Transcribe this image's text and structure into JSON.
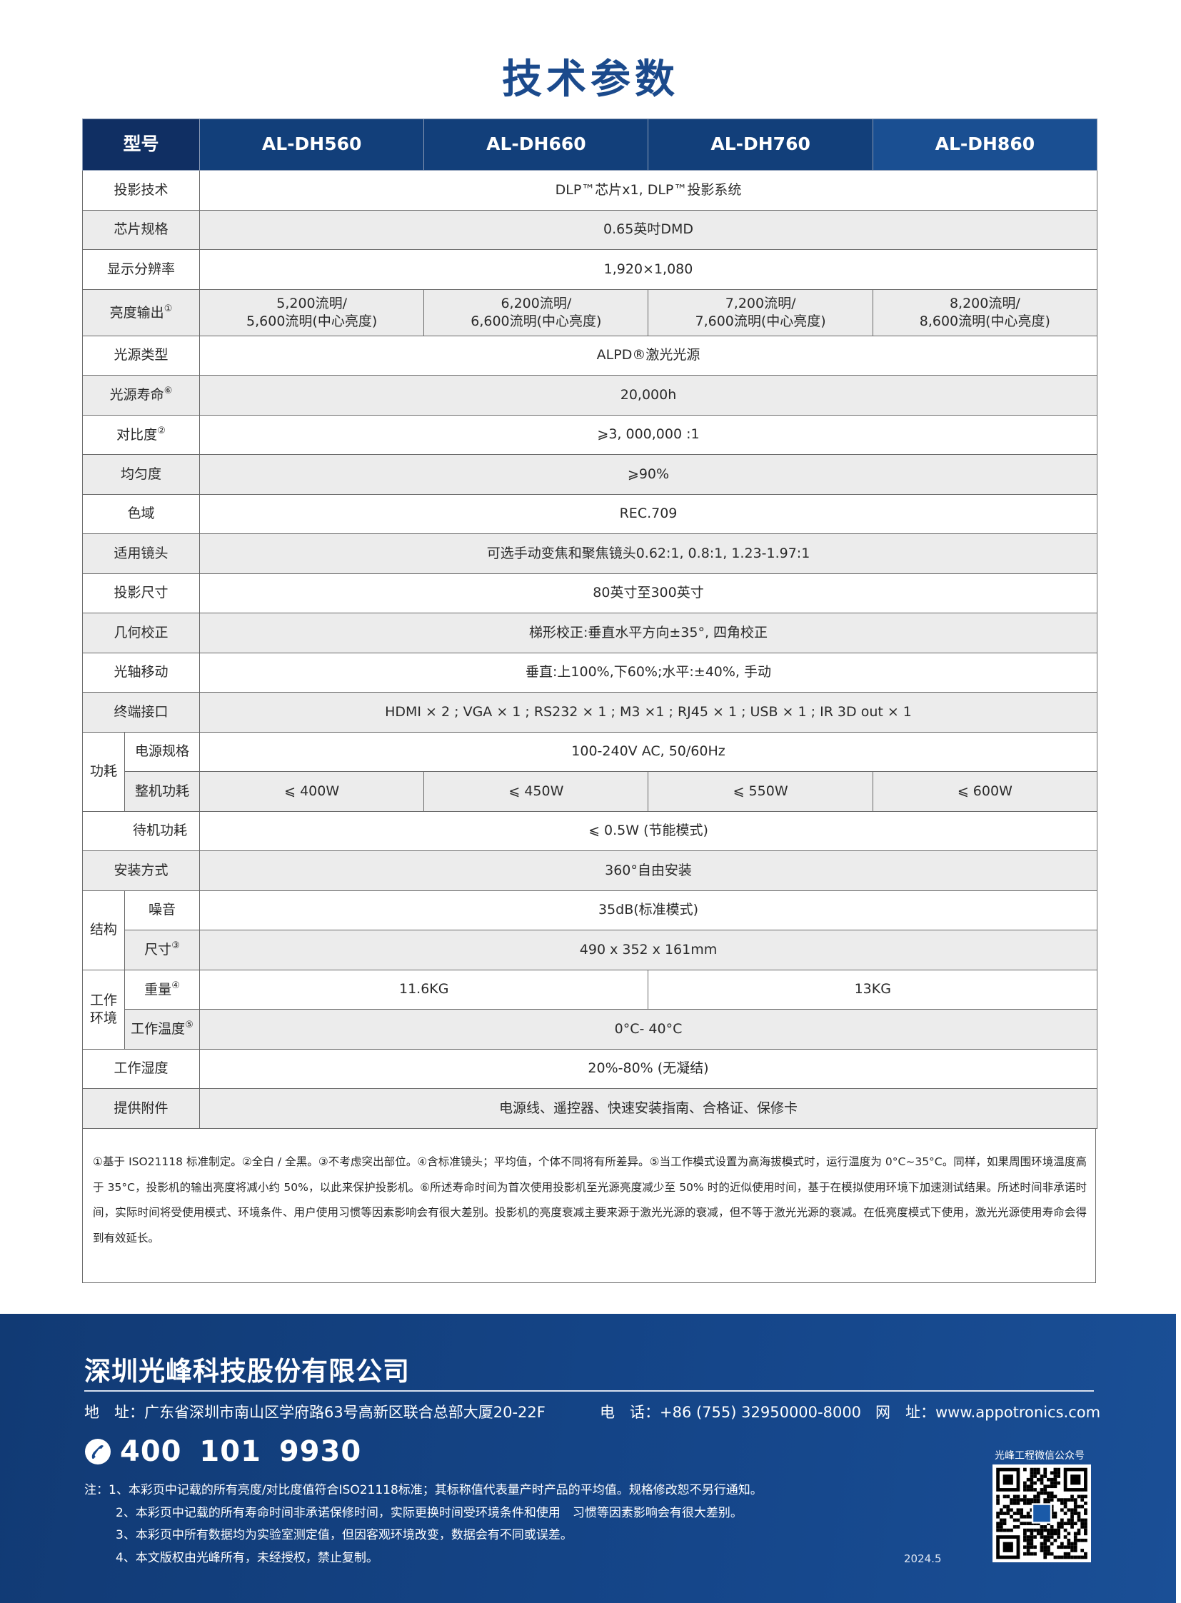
{
  "title": "技术参数",
  "table": {
    "headers": [
      "型号",
      "AL-DH560",
      "AL-DH660",
      "AL-DH760",
      "AL-DH860"
    ],
    "rows": [
      {
        "label": "投影技术",
        "cells": [
          {
            "text": "DLP™芯片x1, DLP™投影系统",
            "span": 4
          }
        ]
      },
      {
        "label": "芯片规格",
        "cells": [
          {
            "text": "0.65英吋DMD",
            "span": 4
          }
        ]
      },
      {
        "label": "显示分辨率",
        "cells": [
          {
            "text": "1,920×1,080",
            "span": 4
          }
        ]
      },
      {
        "label": "亮度输出",
        "sup": "①",
        "tall": true,
        "cells": [
          {
            "text": "5,200流明/\n5,600流明(中心亮度)",
            "span": 1
          },
          {
            "text": "6,200流明/\n6,600流明(中心亮度)",
            "span": 1
          },
          {
            "text": "7,200流明/\n7,600流明(中心亮度)",
            "span": 1
          },
          {
            "text": "8,200流明/\n8,600流明(中心亮度)",
            "span": 1
          }
        ]
      },
      {
        "label": "光源类型",
        "cells": [
          {
            "text": "ALPD®激光光源",
            "span": 4
          }
        ]
      },
      {
        "label": "光源寿命",
        "sup": "⑥",
        "cells": [
          {
            "text": "20,000h",
            "span": 4
          }
        ]
      },
      {
        "label": "对比度",
        "sup": "②",
        "cells": [
          {
            "text": "⩾3, 000,000 :1",
            "span": 4
          }
        ]
      },
      {
        "label": "均匀度",
        "cells": [
          {
            "text": "⩾90%",
            "span": 4
          }
        ]
      },
      {
        "label": "色域",
        "cells": [
          {
            "text": "REC.709",
            "span": 4
          }
        ]
      },
      {
        "label": "适用镜头",
        "cells": [
          {
            "text": "可选手动变焦和聚焦镜头0.62:1, 0.8:1, 1.23-1.97:1",
            "span": 4
          }
        ]
      },
      {
        "label": "投影尺寸",
        "cells": [
          {
            "text": "80英寸至300英寸",
            "span": 4
          }
        ]
      },
      {
        "label": "几何校正",
        "cells": [
          {
            "text": "梯形校正:垂直水平方向±35°, 四角校正",
            "span": 4
          }
        ]
      },
      {
        "label": "光轴移动",
        "cells": [
          {
            "text": "垂直:上100%,下60%;水平:±40%, 手动",
            "span": 4
          }
        ]
      },
      {
        "label": "终端接口",
        "cells": [
          {
            "text": "HDMI × 2 ; VGA × 1 ; RS232 × 1 ; M3 ×1 ; RJ45 × 1 ; USB × 1 ; IR 3D out × 1",
            "span": 4
          }
        ]
      },
      {
        "group": "功耗",
        "group_span": 2,
        "label": "电源规格",
        "cells": [
          {
            "text": "100-240V AC, 50/60Hz",
            "span": 4
          }
        ]
      },
      {
        "label": "整机功耗",
        "in_group": true,
        "cells": [
          {
            "text": "⩽ 400W",
            "span": 1
          },
          {
            "text": "⩽ 450W",
            "span": 1
          },
          {
            "text": "⩽ 550W",
            "span": 1
          },
          {
            "text": "⩽ 600W",
            "span": 1
          }
        ]
      },
      {
        "label": "待机功耗",
        "indent": true,
        "cells": [
          {
            "text": "⩽ 0.5W (节能模式)",
            "span": 4
          }
        ]
      },
      {
        "label": "安装方式",
        "cells": [
          {
            "text": "360°自由安装",
            "span": 4
          }
        ]
      },
      {
        "group": "结构",
        "group_span": 2,
        "label": "噪音",
        "cells": [
          {
            "text": "35dB(标准模式)",
            "span": 4
          }
        ]
      },
      {
        "label": "尺寸",
        "sup": "③",
        "in_group": true,
        "cells": [
          {
            "text": "490 x 352 x 161mm",
            "span": 4
          }
        ]
      },
      {
        "group": "工作\n环境",
        "group_span": 2,
        "label": "重量",
        "sup": "④",
        "cells": [
          {
            "text": "11.6KG",
            "span": 2
          },
          {
            "text": "13KG",
            "span": 2
          }
        ]
      },
      {
        "label": "工作温度",
        "sup": "⑤",
        "in_group": true,
        "cells": [
          {
            "text": "0°C- 40°C",
            "span": 4
          }
        ]
      },
      {
        "label": "工作湿度",
        "cells": [
          {
            "text": "20%-80% (无凝结)",
            "span": 4
          }
        ]
      },
      {
        "label": "提供附件",
        "cells": [
          {
            "text": "电源线、遥控器、快速安装指南、合格证、保修卡",
            "span": 4
          }
        ]
      }
    ]
  },
  "footnote": "①基于 ISO21118 标准制定。②全白 / 全黑。③不考虑突出部位。④含标准镜头；平均值，个体不同将有所差异。⑤当工作模式设置为高海拔模式时，运行温度为 0°C~35°C。同样，如果周围环境温度高于 35°C，投影机的输出亮度将减小约 50%，以此来保护投影机。⑥所述寿命时间为首次使用投影机至光源亮度减少至 50% 时的近似使用时间，基于在模拟使用环境下加速测试结果。所述时间非承诺时间，实际时间将受使用模式、环境条件、用户使用习惯等因素影响会有很大差别。投影机的亮度衰减主要来源于激光光源的衰减，但不等于激光光源的衰减。在低亮度模式下使用，激光光源使用寿命会得到有效延长。",
  "footer": {
    "company": "深圳光峰科技股份有限公司",
    "address": "地　址：广东省深圳市南山区学府路63号高新区联合总部大厦20-22F",
    "tel": "电　话：+86 (755) 32950000-8000",
    "web": "网　址：www.appotronics.com",
    "hotline": "400 101 9930",
    "hotline_icon": "phone-icon",
    "notes": [
      "注：1、本彩页中记载的所有亮度/对比度值符合ISO21118标准；其标称值代表量产时产品的平均值。规格修改恕不另行通知。",
      "2、本彩页中记载的所有寿命时间非承诺保修时间，实际更换时间受环境条件和使用　习惯等因素影响会有很大差别。",
      "3、本彩页中所有数据均为实验室测定值，但因客观环境改变，数据会有不同或误差。",
      "4、本文版权由光峰所有，未经授权，禁止复制。"
    ],
    "qr_label": "光峰工程微信公众号",
    "date": "2024.5"
  },
  "colors": {
    "title": "#1b4a8c",
    "header_bg": "#123f7a",
    "footer_bg": "#15468a",
    "row_alt": "#ececec"
  }
}
